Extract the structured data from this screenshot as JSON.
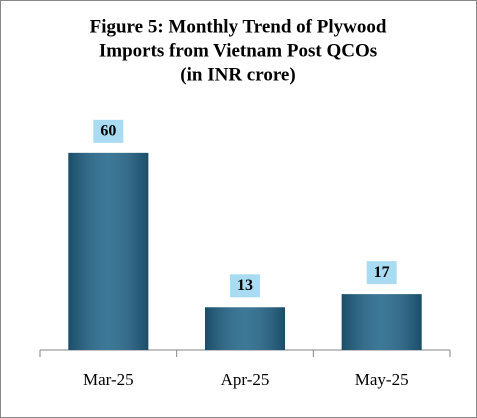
{
  "chart_data": {
    "type": "bar",
    "title": [
      "Figure 5: Monthly Trend of Plywood",
      "Imports from Vietnam Post QCOs",
      "(in INR crore)"
    ],
    "categories": [
      "Mar-25",
      "Apr-25",
      "May-25"
    ],
    "values": [
      60,
      13,
      17
    ],
    "color": "#22668a",
    "label_box_color": "#a9dcf2",
    "ylim": [
      0,
      70
    ]
  }
}
